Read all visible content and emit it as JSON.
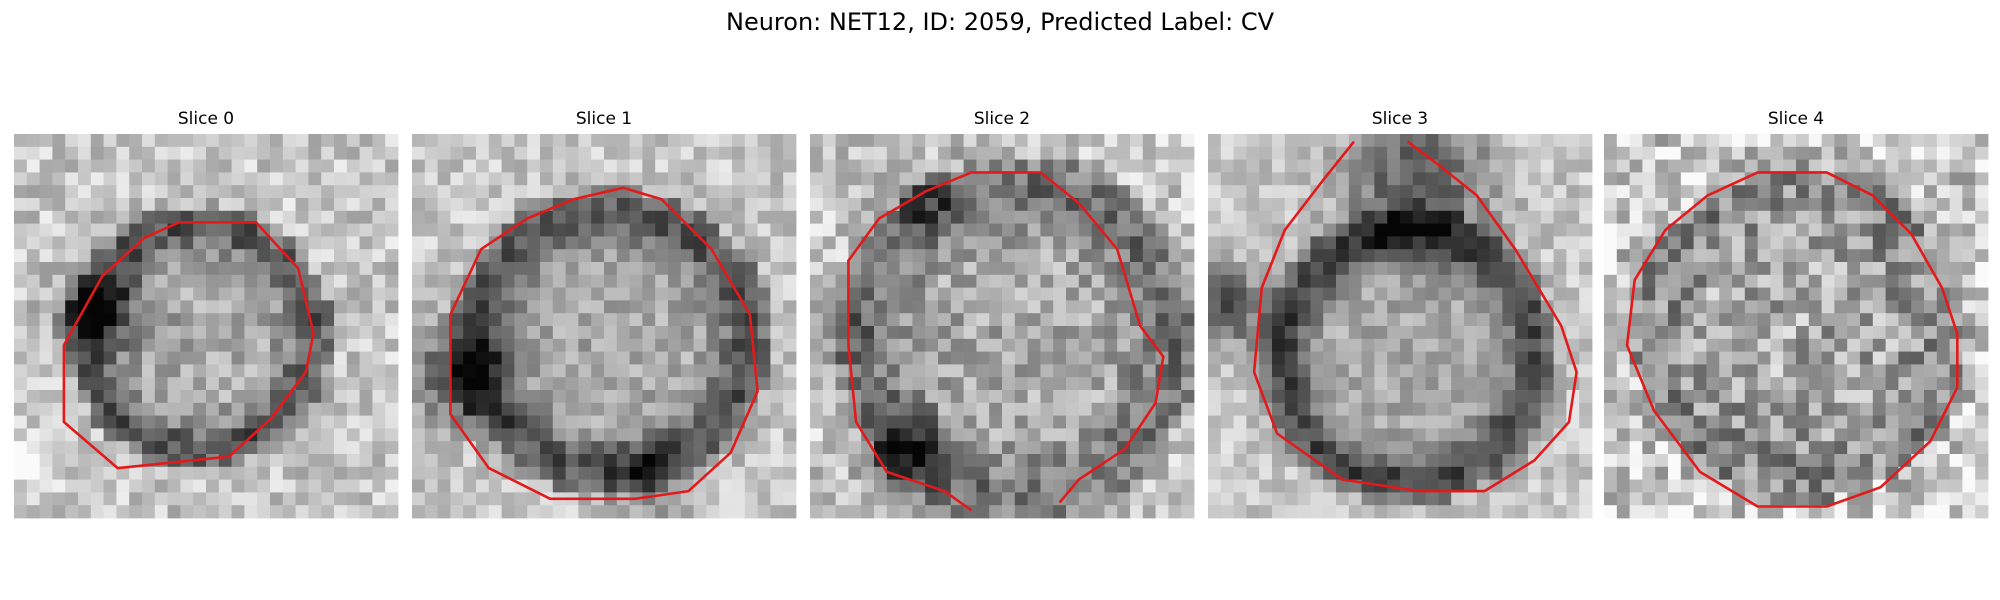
{
  "figure": {
    "suptitle": "Neuron: NET12, ID: 2059, Predicted Label: CV"
  },
  "panels": [
    {
      "title": "Slice 0"
    },
    {
      "title": "Slice 1"
    },
    {
      "title": "Slice 2"
    },
    {
      "title": "Slice 3"
    },
    {
      "title": "Slice 4"
    }
  ],
  "colors": {
    "contour": "#e31a1c",
    "background": "#ffffff"
  },
  "image": {
    "colormap": "grayscale",
    "grid": "30x30"
  }
}
